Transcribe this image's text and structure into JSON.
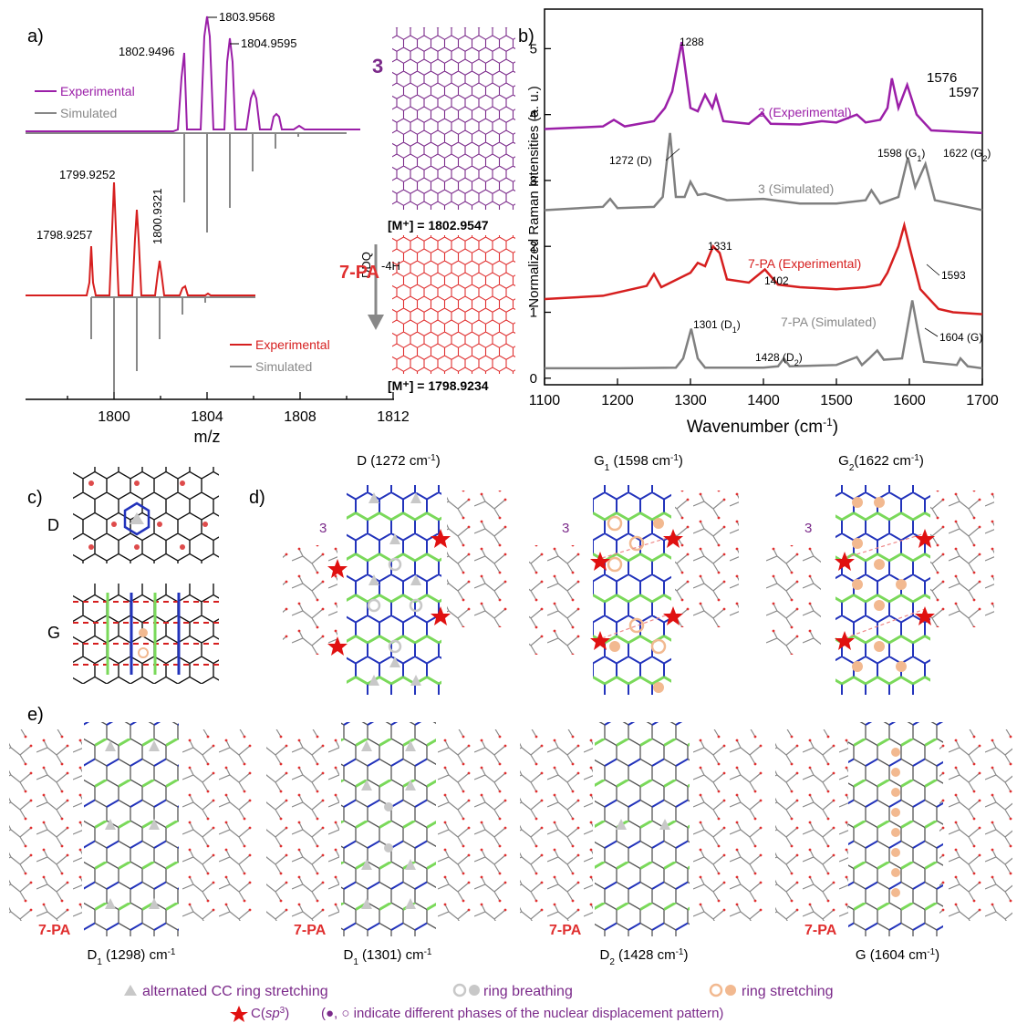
{
  "panels": {
    "a": "a)",
    "b": "b)",
    "c": "c)",
    "d": "d)",
    "e": "e)"
  },
  "colors": {
    "purple": "#9b1fa8",
    "red": "#d61f1f",
    "gray": "#808080",
    "green": "#7ad95a",
    "blue": "#2233bb",
    "orange": "#f2b990",
    "lightgray": "#c8c8c8",
    "star": "#e01010",
    "mol3": "#7b2a8a",
    "mol7": "#e03030"
  },
  "panel_a": {
    "top_legend": [
      "Experimental",
      "Simulated"
    ],
    "bottom_legend": [
      "Experimental",
      "Simulated"
    ],
    "peaks_top": [
      "1802.9496",
      "1803.9568",
      "1804.9595"
    ],
    "peaks_bottom": [
      "1798.9257",
      "1799.9252",
      "1800.9321"
    ],
    "xlabel": "m/z",
    "xticks": [
      "1800",
      "1804",
      "1808",
      "1812"
    ],
    "arrow_label_1": "DDQ",
    "arrow_label_2": "-4H",
    "compound_3": "3",
    "compound_7pa": "7-PA",
    "mass_3": "[M⁺] = 1802.9547",
    "mass_7pa": "[M⁺] = 1798.9234"
  },
  "chart_data": [
    {
      "type": "line",
      "panel": "a-top",
      "series": [
        {
          "name": "Experimental",
          "x": [
            1802.9496,
            1803.9568,
            1804.9595,
            1805.96,
            1806.96,
            1807.96
          ],
          "y": [
            0.78,
            1.0,
            0.8,
            0.42,
            0.17,
            0.04
          ]
        },
        {
          "name": "Simulated",
          "x": [
            1802.95,
            1803.95,
            1804.96,
            1805.96,
            1806.96,
            1807.96
          ],
          "y": [
            0.78,
            1.0,
            0.78,
            0.42,
            0.16,
            0.05
          ]
        }
      ]
    },
    {
      "type": "line",
      "panel": "a-bottom",
      "series": [
        {
          "name": "Experimental",
          "x": [
            1798.9257,
            1799.9252,
            1800.9321,
            1801.93,
            1802.93,
            1803.93
          ],
          "y": [
            0.55,
            1.0,
            0.78,
            0.45,
            0.09,
            0.02
          ]
        },
        {
          "name": "Simulated",
          "x": [
            1798.93,
            1799.92,
            1800.93,
            1801.93,
            1802.93,
            1803.93
          ],
          "y": [
            0.62,
            1.0,
            0.77,
            0.44,
            0.17,
            0.05
          ]
        }
      ],
      "xlabel": "m/z",
      "xlim": [
        1795,
        1812
      ]
    },
    {
      "type": "line",
      "panel": "b",
      "xlabel": "Wavenumber (cm⁻¹)",
      "ylabel": "Normalized Raman Intensities (a. u.)",
      "xlim": [
        1100,
        1700
      ],
      "ylim": [
        -0.1,
        5.6
      ],
      "xticks": [
        "1100",
        "1200",
        "1300",
        "1400",
        "1500",
        "1600",
        "1700"
      ],
      "yticks": [
        "0",
        "1",
        "2",
        "3",
        "4",
        "5"
      ],
      "series": [
        {
          "name": "3 (Experimental)",
          "x": [
            1100,
            1180,
            1195,
            1210,
            1250,
            1265,
            1275,
            1288,
            1300,
            1310,
            1320,
            1330,
            1335,
            1345,
            1380,
            1398,
            1410,
            1450,
            1480,
            1500,
            1528,
            1540,
            1560,
            1570,
            1576,
            1585,
            1597,
            1610,
            1630,
            1700
          ],
          "y": [
            3.78,
            3.82,
            3.92,
            3.82,
            3.9,
            4.1,
            4.35,
            5.1,
            4.1,
            4.05,
            4.3,
            4.1,
            4.28,
            3.9,
            3.86,
            4.02,
            3.86,
            3.85,
            3.9,
            3.88,
            4.0,
            3.88,
            3.92,
            4.1,
            4.55,
            4.1,
            4.45,
            4.0,
            3.76,
            3.72
          ]
        },
        {
          "name": "3 (Simulated)",
          "x": [
            1100,
            1180,
            1190,
            1200,
            1250,
            1262,
            1272,
            1280,
            1292,
            1300,
            1310,
            1320,
            1350,
            1400,
            1450,
            1500,
            1540,
            1548,
            1560,
            1585,
            1598,
            1608,
            1622,
            1635,
            1700
          ],
          "y": [
            2.55,
            2.6,
            2.72,
            2.58,
            2.6,
            2.75,
            3.72,
            2.75,
            2.75,
            2.98,
            2.78,
            2.8,
            2.7,
            2.72,
            2.65,
            2.65,
            2.7,
            2.85,
            2.65,
            2.75,
            3.35,
            2.9,
            3.25,
            2.7,
            2.55
          ]
        },
        {
          "name": "7-PA (Experimental)",
          "x": [
            1100,
            1180,
            1200,
            1240,
            1250,
            1260,
            1300,
            1310,
            1320,
            1331,
            1340,
            1350,
            1380,
            1402,
            1420,
            1450,
            1500,
            1540,
            1560,
            1570,
            1585,
            1593,
            1600,
            1615,
            1640,
            1660,
            1700
          ],
          "y": [
            1.2,
            1.25,
            1.3,
            1.4,
            1.58,
            1.38,
            1.6,
            1.75,
            1.7,
            2.0,
            1.9,
            1.5,
            1.45,
            1.65,
            1.42,
            1.38,
            1.35,
            1.38,
            1.42,
            1.6,
            2.0,
            2.32,
            2.0,
            1.35,
            1.05,
            1.0,
            0.97
          ]
        },
        {
          "name": "7-PA (Simulated)",
          "x": [
            1100,
            1200,
            1280,
            1290,
            1301,
            1310,
            1320,
            1400,
            1420,
            1428,
            1436,
            1500,
            1528,
            1535,
            1545,
            1556,
            1565,
            1590,
            1604,
            1612,
            1620,
            1665,
            1670,
            1680,
            1700
          ],
          "y": [
            0.15,
            0.15,
            0.16,
            0.3,
            0.75,
            0.3,
            0.16,
            0.16,
            0.18,
            0.3,
            0.18,
            0.2,
            0.32,
            0.2,
            0.3,
            0.42,
            0.28,
            0.3,
            1.18,
            0.7,
            0.25,
            0.2,
            0.3,
            0.18,
            0.15
          ]
        }
      ],
      "annotations": [
        "1288",
        "1576",
        "1597",
        "1272 (D)",
        "1598 (G1)",
        "1622 (G2)",
        "1331",
        "1593",
        "1402",
        "1301 (D1)",
        "1428 (D2)",
        "1604 (G)"
      ],
      "series_labels": [
        "3 (Experimental)",
        "3 (Simulated)",
        "7-PA (Experimental)",
        "7-PA (Simulated)"
      ]
    }
  ],
  "panel_b_text": {
    "p1288": "1288",
    "p1576": "1576",
    "p1597": "1597",
    "p1272": "1272 (D)",
    "p1598": "1598 (G",
    "p1598s": "1",
    "p1622": "1622 (G",
    "p1622s": "2",
    "p1331": "1331",
    "p1593": "1593",
    "p1402": "1402",
    "p1301": "1301 (D",
    "p1301s": "1",
    "p1428": "1428 (D",
    "p1428s": "2",
    "p1604": "1604 (G)",
    "s3e": "3 (Experimental)",
    "s3s": "3 (Simulated)",
    "s7e": "7-PA (Experimental)",
    "s7s": "7-PA (Simulated)",
    "xlabel": "Wavenumber (cm",
    "xlabel_sup": "-1",
    "xlabel_end": ")",
    "ylabel": "Normalized Raman Intensities (a. u.)"
  },
  "panel_c": {
    "D": "D",
    "G": "G"
  },
  "panel_d": {
    "titles": [
      {
        "main": "D (1272 cm",
        "sup": "-1",
        "end": ")"
      },
      {
        "main": "G",
        "sub": "1",
        "rest": " (1598 cm",
        "sup": "-1",
        "end": ")"
      },
      {
        "main": "G",
        "sub": "2",
        "rest": "(1622 cm",
        "sup": "-1",
        "end": ")"
      }
    ],
    "mol_label": "3"
  },
  "panel_e": {
    "captions": [
      {
        "main": "D",
        "sub": "1",
        "rest": " (1298) cm",
        "sup": "-1"
      },
      {
        "main": "D",
        "sub": "1",
        "rest": " (1301) cm",
        "sup": "-1"
      },
      {
        "main": "D",
        "sub": "2",
        "rest": " (1428 cm",
        "sup": "-1",
        "end": ")"
      },
      {
        "main": "G (1604 cm",
        "sup": "-1",
        "end": ")"
      }
    ],
    "mol_label": "7-PA"
  },
  "legend": {
    "item1": "alternated CC ring stretching",
    "item2": "ring breathing",
    "item3": "ring stretching",
    "item4": "C(",
    "item4_it": "sp",
    "item4_sup": "3",
    "item4_end": ")",
    "item5": "(●, ○ indicate different phases of the nuclear displacement pattern)"
  }
}
